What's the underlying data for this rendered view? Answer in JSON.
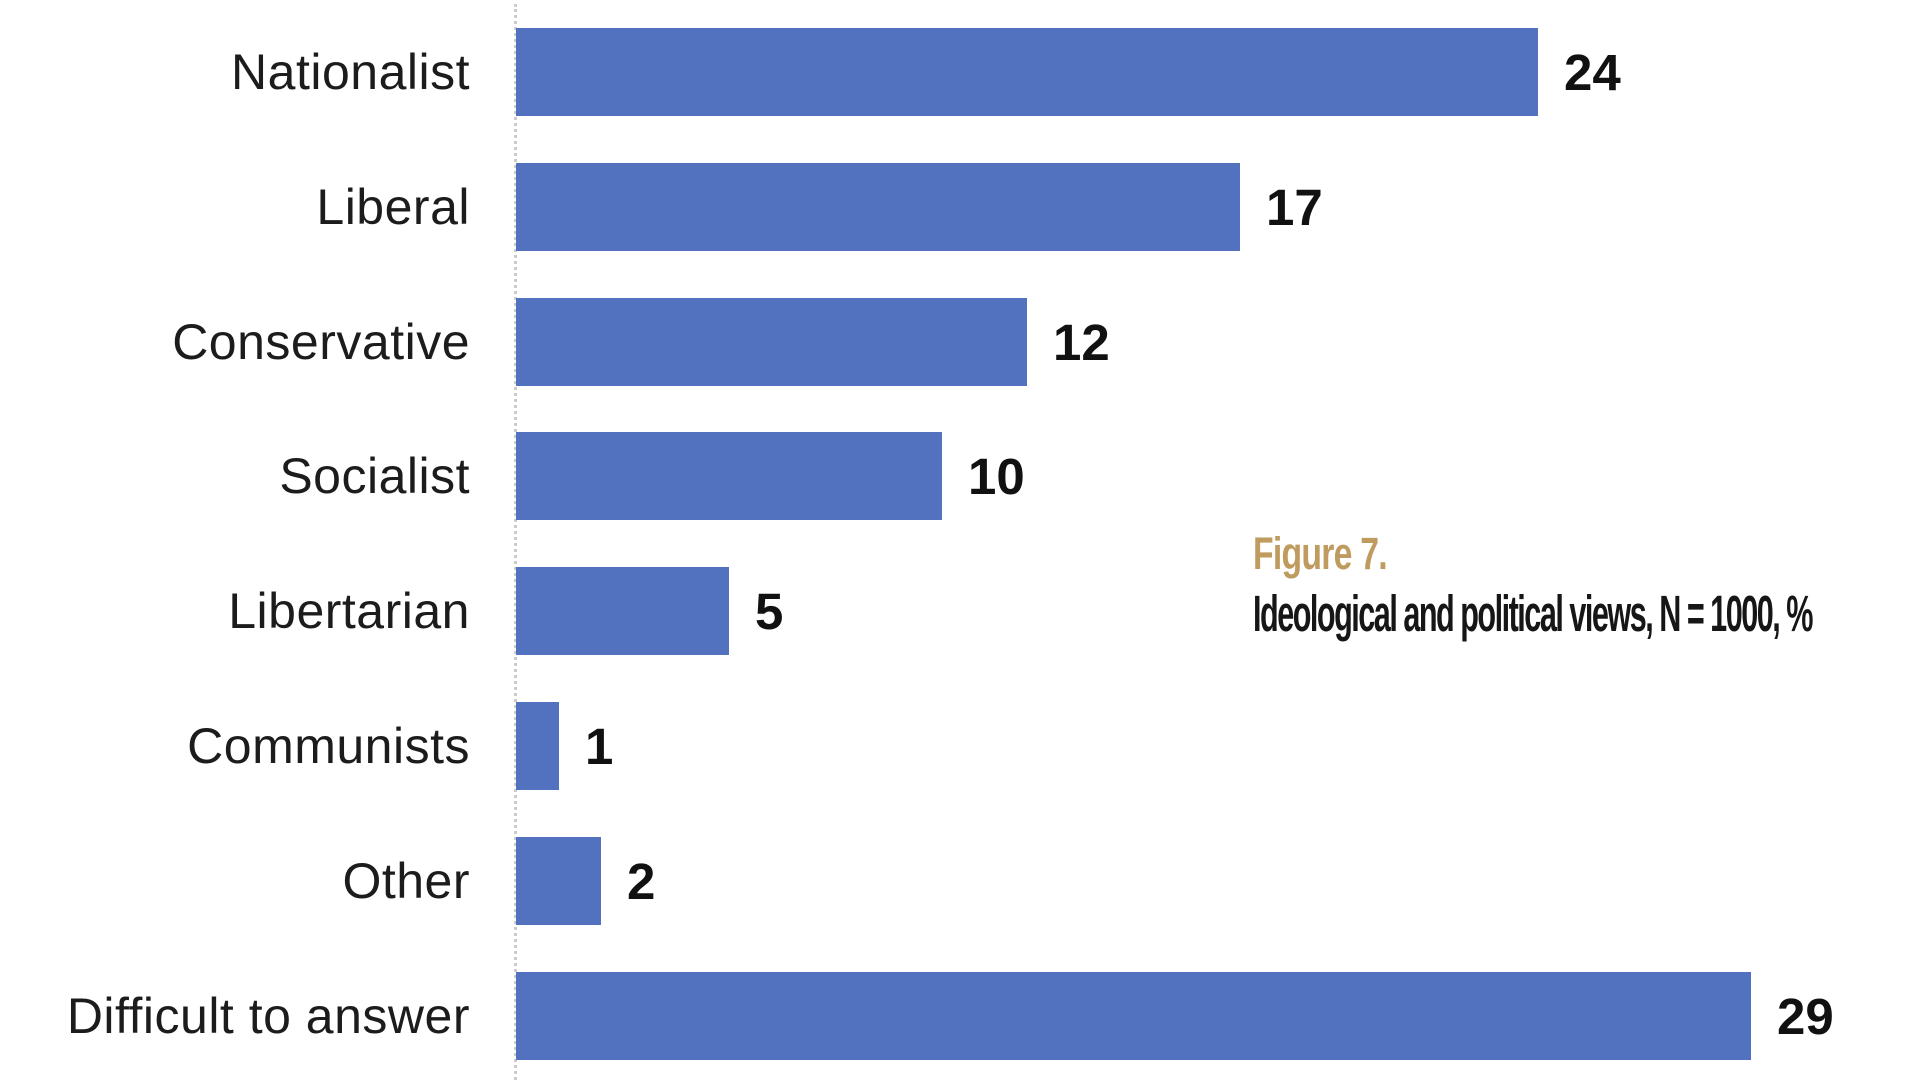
{
  "chart_data": {
    "type": "bar",
    "orientation": "horizontal",
    "title": "Figure 7.",
    "subtitle": "Ideological and political views, N = 1000, %",
    "categories": [
      "Nationalist",
      "Liberal",
      "Conservative",
      "Socialist",
      "Libertarian",
      "Communists",
      "Other",
      "Difficult to answer"
    ],
    "values": [
      24,
      17,
      12,
      10,
      5,
      1,
      2,
      29
    ],
    "xlim": [
      0,
      29
    ],
    "grid": false,
    "legend": false,
    "value_labels": true,
    "bar_color": "#5272BF",
    "title_color": "#C09B60",
    "subtitle_color": "#161616",
    "category_label_color": "#1C1C1C",
    "value_label_color": "#111111",
    "axis_line_color": "#CCCCCC"
  }
}
